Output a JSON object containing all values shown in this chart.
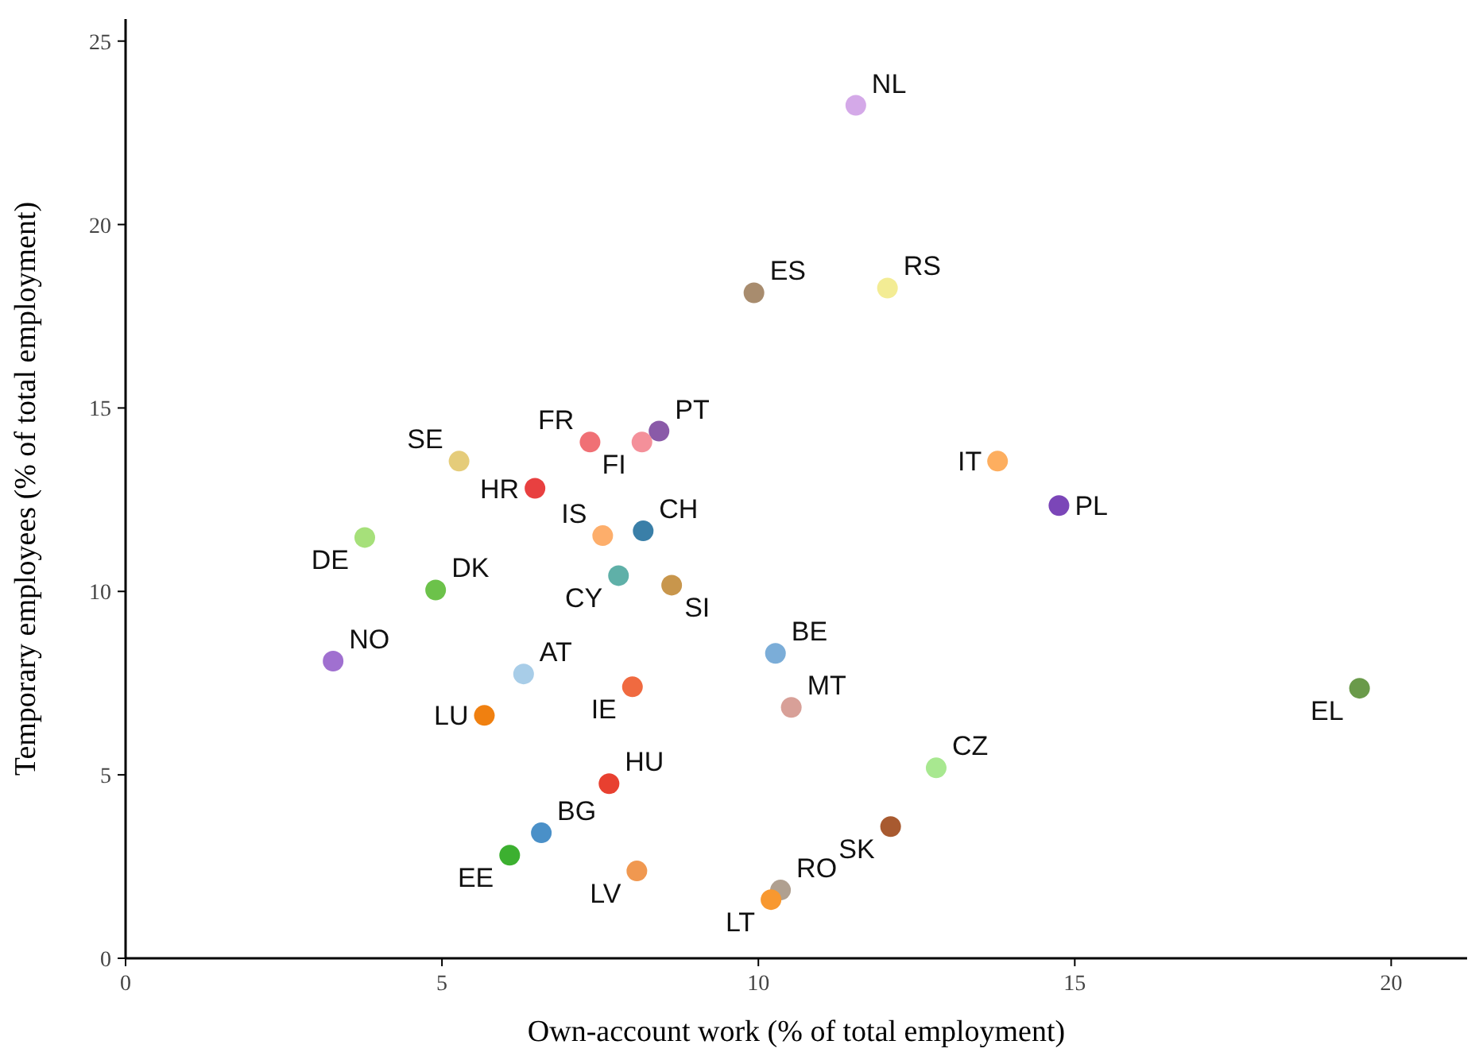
{
  "chart_data": {
    "type": "scatter",
    "xlabel": "Own-account work (% of total employment)",
    "ylabel": "Temporary employees (% of total employment)",
    "xlim": [
      0,
      21.2
    ],
    "ylim": [
      0,
      25.6
    ],
    "xticks": [
      0,
      5,
      10,
      15,
      20
    ],
    "yticks": [
      0,
      5,
      10,
      15,
      20,
      25
    ],
    "grid": false,
    "marker": "circle",
    "series": [
      {
        "name": "NL",
        "color": "#d4a9e8",
        "x": [
          11.54
        ],
        "values": [
          23.25
        ]
      },
      {
        "name": "ES",
        "color": "#a88c6e",
        "x": [
          9.93
        ],
        "values": [
          18.14
        ]
      },
      {
        "name": "RS",
        "color": "#f3ec94",
        "x": [
          12.04
        ],
        "values": [
          18.27
        ]
      },
      {
        "name": "PT",
        "color": "#8a5aa8",
        "x": [
          8.43
        ],
        "values": [
          14.37
        ]
      },
      {
        "name": "FR",
        "color": "#f07075",
        "x": [
          7.34
        ],
        "values": [
          14.07
        ]
      },
      {
        "name": "FI",
        "color": "#f4909a",
        "x": [
          8.16
        ],
        "values": [
          14.07
        ]
      },
      {
        "name": "SE",
        "color": "#e5cc7a",
        "x": [
          5.27
        ],
        "values": [
          13.55
        ]
      },
      {
        "name": "HR",
        "color": "#e84040",
        "x": [
          6.47
        ],
        "values": [
          12.81
        ]
      },
      {
        "name": "IT",
        "color": "#fdae5f",
        "x": [
          13.78
        ],
        "values": [
          13.55
        ]
      },
      {
        "name": "PL",
        "color": "#7b46b8",
        "x": [
          14.75
        ],
        "values": [
          12.34
        ]
      },
      {
        "name": "CH",
        "color": "#3a7fa8",
        "x": [
          8.18
        ],
        "values": [
          11.65
        ]
      },
      {
        "name": "IS",
        "color": "#fdae6b",
        "x": [
          7.54
        ],
        "values": [
          11.52
        ]
      },
      {
        "name": "DE",
        "color": "#a6e07a",
        "x": [
          3.78
        ],
        "values": [
          11.47
        ]
      },
      {
        "name": "DK",
        "color": "#6cc24a",
        "x": [
          4.9
        ],
        "values": [
          10.04
        ]
      },
      {
        "name": "CY",
        "color": "#5fb0a8",
        "x": [
          7.79
        ],
        "values": [
          10.43
        ]
      },
      {
        "name": "SI",
        "color": "#c8964c",
        "x": [
          8.63
        ],
        "values": [
          10.17
        ]
      },
      {
        "name": "NO",
        "color": "#a070d0",
        "x": [
          3.28
        ],
        "values": [
          8.1
        ]
      },
      {
        "name": "BE",
        "color": "#7badd8",
        "x": [
          10.27
        ],
        "values": [
          8.31
        ]
      },
      {
        "name": "AT",
        "color": "#a8cde8",
        "x": [
          6.29
        ],
        "values": [
          7.75
        ]
      },
      {
        "name": "IE",
        "color": "#f06a40",
        "x": [
          8.01
        ],
        "values": [
          7.4
        ]
      },
      {
        "name": "EL",
        "color": "#6a9a4a",
        "x": [
          19.5
        ],
        "values": [
          7.36
        ]
      },
      {
        "name": "MT",
        "color": "#d8a098",
        "x": [
          10.52
        ],
        "values": [
          6.84
        ]
      },
      {
        "name": "LU",
        "color": "#f08010",
        "x": [
          5.67
        ],
        "values": [
          6.62
        ]
      },
      {
        "name": "CZ",
        "color": "#a8e890",
        "x": [
          12.81
        ],
        "values": [
          5.19
        ]
      },
      {
        "name": "HU",
        "color": "#e84030",
        "x": [
          7.64
        ],
        "values": [
          4.76
        ]
      },
      {
        "name": "SK",
        "color": "#a85a30",
        "x": [
          12.09
        ],
        "values": [
          3.59
        ]
      },
      {
        "name": "BG",
        "color": "#4a90c8",
        "x": [
          6.57
        ],
        "values": [
          3.42
        ]
      },
      {
        "name": "EE",
        "color": "#3cb030",
        "x": [
          6.07
        ],
        "values": [
          2.81
        ]
      },
      {
        "name": "LV",
        "color": "#f09850",
        "x": [
          8.08
        ],
        "values": [
          2.38
        ]
      },
      {
        "name": "RO",
        "color": "#b0a090",
        "x": [
          10.35
        ],
        "values": [
          1.86
        ]
      },
      {
        "name": "LT",
        "color": "#f89830",
        "x": [
          10.2
        ],
        "values": [
          1.6
        ]
      }
    ]
  }
}
